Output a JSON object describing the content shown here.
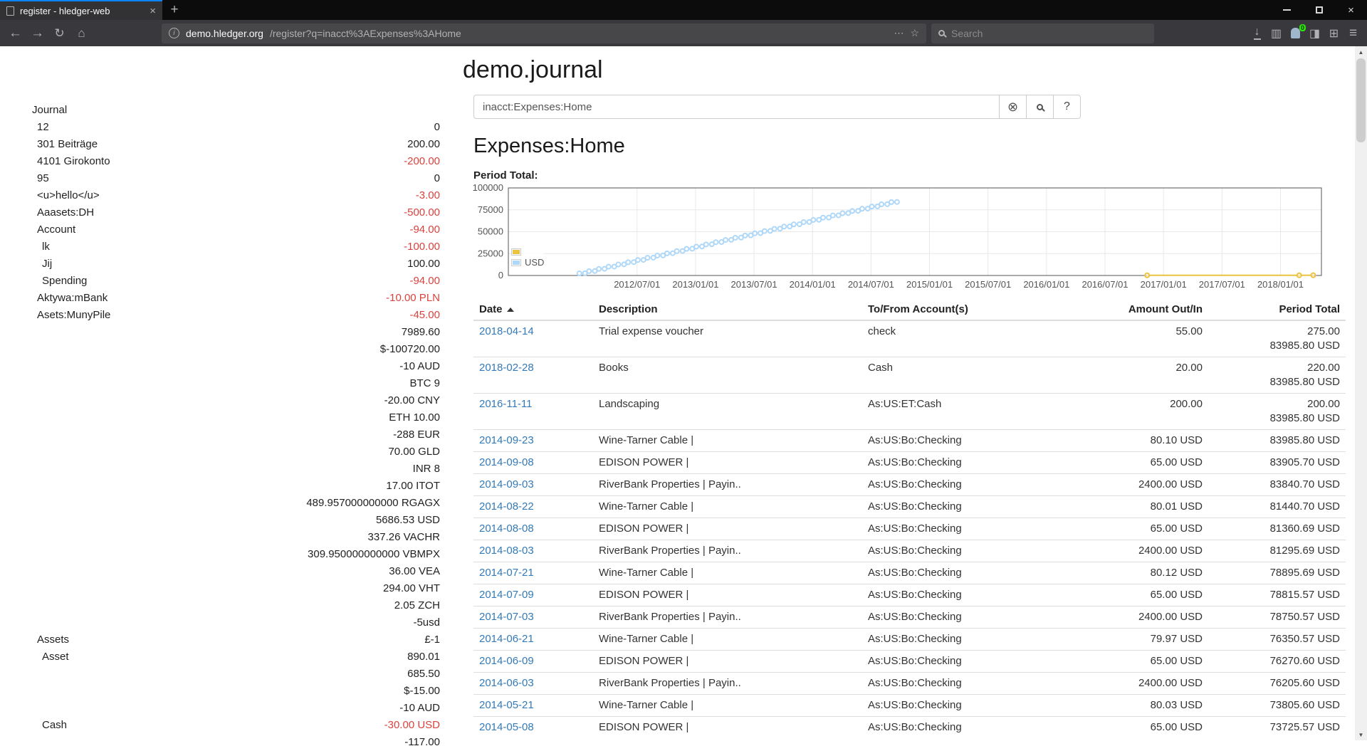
{
  "colors": {
    "accent_link": "#337ab7",
    "negative": "#d9433e",
    "chart_yellow": "#edc240",
    "chart_blue": "#afd8f8"
  },
  "icons": {
    "close": "×",
    "close_x": "×",
    "plus": "+",
    "back": "←",
    "forward": "→",
    "reload": "↻",
    "home": "⌂",
    "dots": "⋯",
    "star": "☆",
    "download": "↓",
    "library": "▥",
    "sidebar_toggle": "◨",
    "grid": "⊞",
    "menu": "≡",
    "clear": "⊗",
    "info": "i",
    "up_arrow": "▲",
    "down_arrow": "▼"
  },
  "browser": {
    "tab_title": "register - hledger-web",
    "url_domain": "demo.hledger.org",
    "url_path": "/register?q=inacct%3AExpenses%3AHome",
    "search_placeholder": "Search",
    "extension_badge": "0"
  },
  "page": {
    "title": "demo.journal",
    "query": "inacct:Expenses:Home",
    "heading": "Expenses:Home",
    "period_total_label": "Period Total:",
    "help_label": "?"
  },
  "sidebar": {
    "heading": "Journal",
    "rows": [
      {
        "name": "12",
        "indent": 1,
        "balance": "0",
        "negative": false
      },
      {
        "name": "301 Beiträge",
        "indent": 1,
        "balance": "200.00",
        "negative": false
      },
      {
        "name": "4101 Girokonto",
        "indent": 1,
        "balance": "-200.00",
        "negative": true
      },
      {
        "name": "95",
        "indent": 1,
        "balance": "0",
        "negative": false
      },
      {
        "name": "<u>hello</u>",
        "indent": 1,
        "balance": "-3.00",
        "negative": true
      },
      {
        "name": "Aaasets:DH",
        "indent": 1,
        "balance": "-500.00",
        "negative": true
      },
      {
        "name": "Account",
        "indent": 1,
        "balance": "-94.00",
        "negative": true
      },
      {
        "name": "lk",
        "indent": 2,
        "balance": "-100.00",
        "negative": true
      },
      {
        "name": "Jij",
        "indent": 2,
        "balance": "100.00",
        "negative": false
      },
      {
        "name": "Spending",
        "indent": 2,
        "balance": "-94.00",
        "negative": true
      },
      {
        "name": "Aktywa:mBank",
        "indent": 1,
        "balance": "-10.00 PLN",
        "negative": true
      },
      {
        "name": "Asets:MunyPile",
        "indent": 1,
        "balance": "-45.00",
        "negative": true
      },
      {
        "name": "",
        "balance": "7989.60",
        "negative": false
      },
      {
        "name": "",
        "balance": "$-100720.00",
        "negative": false
      },
      {
        "name": "",
        "balance": "-10 AUD",
        "negative": false
      },
      {
        "name": "",
        "balance": "BTC 9",
        "negative": false
      },
      {
        "name": "",
        "balance": "-20.00 CNY",
        "negative": false
      },
      {
        "name": "",
        "balance": "ETH 10.00",
        "negative": false
      },
      {
        "name": "",
        "balance": "-288 EUR",
        "negative": false
      },
      {
        "name": "",
        "balance": "70.00 GLD",
        "negative": false
      },
      {
        "name": "",
        "balance": "INR 8",
        "negative": false
      },
      {
        "name": "",
        "balance": "17.00 ITOT",
        "negative": false
      },
      {
        "name": "",
        "balance": "489.957000000000 RGAGX",
        "negative": false
      },
      {
        "name": "",
        "balance": "5686.53 USD",
        "negative": false
      },
      {
        "name": "",
        "balance": "337.26 VACHR",
        "negative": false
      },
      {
        "name": "",
        "balance": "309.950000000000 VBMPX",
        "negative": false
      },
      {
        "name": "",
        "balance": "36.00 VEA",
        "negative": false
      },
      {
        "name": "",
        "balance": "294.00 VHT",
        "negative": false
      },
      {
        "name": "",
        "balance": "2.05 ZCH",
        "negative": false
      },
      {
        "name": "",
        "balance": "-5usd",
        "negative": false
      },
      {
        "name": "Assets",
        "indent": 1,
        "balance": "£-1",
        "negative": false
      },
      {
        "name": "Asset",
        "indent": 2,
        "balance": "890.01",
        "negative": false
      },
      {
        "name": "",
        "balance": "685.50",
        "negative": false
      },
      {
        "name": "",
        "balance": "$-15.00",
        "negative": false
      },
      {
        "name": "",
        "balance": "-10 AUD",
        "negative": false
      },
      {
        "name": "Cash",
        "indent": 2,
        "balance": "-30.00 USD",
        "negative": true
      },
      {
        "name": "",
        "balance": "-117.00",
        "negative": false
      }
    ]
  },
  "register": {
    "columns": {
      "date": "Date",
      "description": "Description",
      "account": "To/From Account(s)",
      "amount": "Amount Out/In",
      "total": "Period Total"
    },
    "rows": [
      {
        "date": "2018-04-14",
        "description": "Trial expense voucher",
        "account": "check",
        "amount": "55.00",
        "totals": [
          "275.00",
          "83985.80 USD"
        ]
      },
      {
        "date": "2018-02-28",
        "description": "Books",
        "account": "Cash",
        "amount": "20.00",
        "totals": [
          "220.00",
          "83985.80 USD"
        ]
      },
      {
        "date": "2016-11-11",
        "description": "Landscaping",
        "account": "As:US:ET:Cash",
        "amount": "200.00",
        "totals": [
          "200.00",
          "83985.80 USD"
        ]
      },
      {
        "date": "2014-09-23",
        "description": "Wine-Tarner Cable |",
        "account": "As:US:Bo:Checking",
        "amount": "80.10 USD",
        "totals": [
          "83985.80 USD"
        ]
      },
      {
        "date": "2014-09-08",
        "description": "EDISON POWER |",
        "account": "As:US:Bo:Checking",
        "amount": "65.00 USD",
        "totals": [
          "83905.70 USD"
        ]
      },
      {
        "date": "2014-09-03",
        "description": "RiverBank Properties | Payin..",
        "account": "As:US:Bo:Checking",
        "amount": "2400.00 USD",
        "totals": [
          "83840.70 USD"
        ]
      },
      {
        "date": "2014-08-22",
        "description": "Wine-Tarner Cable |",
        "account": "As:US:Bo:Checking",
        "amount": "80.01 USD",
        "totals": [
          "81440.70 USD"
        ]
      },
      {
        "date": "2014-08-08",
        "description": "EDISON POWER |",
        "account": "As:US:Bo:Checking",
        "amount": "65.00 USD",
        "totals": [
          "81360.69 USD"
        ]
      },
      {
        "date": "2014-08-03",
        "description": "RiverBank Properties | Payin..",
        "account": "As:US:Bo:Checking",
        "amount": "2400.00 USD",
        "totals": [
          "81295.69 USD"
        ]
      },
      {
        "date": "2014-07-21",
        "description": "Wine-Tarner Cable |",
        "account": "As:US:Bo:Checking",
        "amount": "80.12 USD",
        "totals": [
          "78895.69 USD"
        ]
      },
      {
        "date": "2014-07-09",
        "description": "EDISON POWER |",
        "account": "As:US:Bo:Checking",
        "amount": "65.00 USD",
        "totals": [
          "78815.57 USD"
        ]
      },
      {
        "date": "2014-07-03",
        "description": "RiverBank Properties | Payin..",
        "account": "As:US:Bo:Checking",
        "amount": "2400.00 USD",
        "totals": [
          "78750.57 USD"
        ]
      },
      {
        "date": "2014-06-21",
        "description": "Wine-Tarner Cable |",
        "account": "As:US:Bo:Checking",
        "amount": "79.97 USD",
        "totals": [
          "76350.57 USD"
        ]
      },
      {
        "date": "2014-06-09",
        "description": "EDISON POWER |",
        "account": "As:US:Bo:Checking",
        "amount": "65.00 USD",
        "totals": [
          "76270.60 USD"
        ]
      },
      {
        "date": "2014-06-03",
        "description": "RiverBank Properties | Payin..",
        "account": "As:US:Bo:Checking",
        "amount": "2400.00 USD",
        "totals": [
          "76205.60 USD"
        ]
      },
      {
        "date": "2014-05-21",
        "description": "Wine-Tarner Cable |",
        "account": "As:US:Bo:Checking",
        "amount": "80.03 USD",
        "totals": [
          "73805.60 USD"
        ]
      },
      {
        "date": "2014-05-08",
        "description": "EDISON POWER |",
        "account": "As:US:Bo:Checking",
        "amount": "65.00 USD",
        "totals": [
          "73725.57 USD"
        ]
      }
    ]
  },
  "chart_data": {
    "type": "scatter",
    "title": "Period Total:",
    "xlim": [
      2011.4,
      2018.35
    ],
    "ylim": [
      0,
      100000
    ],
    "grid": true,
    "border_color": "#545454",
    "grid_color": "#e8e8e8",
    "label_color": "#545454",
    "y_ticks": [
      {
        "v": 0,
        "label": "0"
      },
      {
        "v": 25000,
        "label": "25000"
      },
      {
        "v": 50000,
        "label": "50000"
      },
      {
        "v": 75000,
        "label": "75000"
      },
      {
        "v": 100000,
        "label": "100000"
      }
    ],
    "x_ticks": [
      {
        "v": 2012.5,
        "label": "2012/07/01"
      },
      {
        "v": 2013.0,
        "label": "2013/01/01"
      },
      {
        "v": 2013.5,
        "label": "2013/07/01"
      },
      {
        "v": 2014.0,
        "label": "2014/01/01"
      },
      {
        "v": 2014.5,
        "label": "2014/07/01"
      },
      {
        "v": 2015.0,
        "label": "2015/01/01"
      },
      {
        "v": 2015.5,
        "label": "2015/07/01"
      },
      {
        "v": 2016.0,
        "label": "2016/01/01"
      },
      {
        "v": 2016.5,
        "label": "2016/07/01"
      },
      {
        "v": 2017.0,
        "label": "2017/01/01"
      },
      {
        "v": 2017.5,
        "label": "2017/07/01"
      },
      {
        "v": 2018.0,
        "label": "2018/01/01"
      }
    ],
    "legend": [
      {
        "label": "",
        "color": "#edc240"
      },
      {
        "label": "USD",
        "color": "#afd8f8"
      }
    ],
    "legend_position": "bottom-left",
    "series": [
      {
        "name": "",
        "color": "#edc240",
        "draw": "line-points",
        "points": [
          [
            2016.86,
            200
          ],
          [
            2018.16,
            220
          ],
          [
            2018.28,
            275
          ]
        ]
      },
      {
        "name": "USD",
        "color": "#afd8f8",
        "draw": "points",
        "points": [
          [
            2012.007,
            2400
          ],
          [
            2012.055,
            2545
          ],
          [
            2012.09,
            4945
          ],
          [
            2012.139,
            5090
          ],
          [
            2012.174,
            7490
          ],
          [
            2012.222,
            7635
          ],
          [
            2012.257,
            10035
          ],
          [
            2012.305,
            10180
          ],
          [
            2012.34,
            12580
          ],
          [
            2012.389,
            12725
          ],
          [
            2012.424,
            15125
          ],
          [
            2012.472,
            15270
          ],
          [
            2012.507,
            17670
          ],
          [
            2012.555,
            17815
          ],
          [
            2012.59,
            20215
          ],
          [
            2012.639,
            20360
          ],
          [
            2012.674,
            22760
          ],
          [
            2012.722,
            22905
          ],
          [
            2012.757,
            25305
          ],
          [
            2012.805,
            25450
          ],
          [
            2012.84,
            27850
          ],
          [
            2012.889,
            27995
          ],
          [
            2012.924,
            30395
          ],
          [
            2012.972,
            30540
          ],
          [
            2013.007,
            32940
          ],
          [
            2013.055,
            33085
          ],
          [
            2013.09,
            35485
          ],
          [
            2013.139,
            35630
          ],
          [
            2013.174,
            38030
          ],
          [
            2013.222,
            38175
          ],
          [
            2013.257,
            40575
          ],
          [
            2013.305,
            40720
          ],
          [
            2013.34,
            43120
          ],
          [
            2013.389,
            43265
          ],
          [
            2013.424,
            45665
          ],
          [
            2013.472,
            45810
          ],
          [
            2013.507,
            48210
          ],
          [
            2013.555,
            48355
          ],
          [
            2013.59,
            50755
          ],
          [
            2013.639,
            50900
          ],
          [
            2013.674,
            53300
          ],
          [
            2013.722,
            53445
          ],
          [
            2013.757,
            55845
          ],
          [
            2013.805,
            55990
          ],
          [
            2013.84,
            58390
          ],
          [
            2013.889,
            58535
          ],
          [
            2013.924,
            60935
          ],
          [
            2013.972,
            61080
          ],
          [
            2014.007,
            63480
          ],
          [
            2014.055,
            63625
          ],
          [
            2014.09,
            66025
          ],
          [
            2014.139,
            66170
          ],
          [
            2014.174,
            68570
          ],
          [
            2014.222,
            68715
          ],
          [
            2014.257,
            71115
          ],
          [
            2014.305,
            71260
          ],
          [
            2014.34,
            73660
          ],
          [
            2014.389,
            73805
          ],
          [
            2014.424,
            76205
          ],
          [
            2014.472,
            76350
          ],
          [
            2014.507,
            78750
          ],
          [
            2014.555,
            78895
          ],
          [
            2014.59,
            81295
          ],
          [
            2014.639,
            81440
          ],
          [
            2014.674,
            83840
          ],
          [
            2014.722,
            83985
          ]
        ]
      }
    ]
  }
}
